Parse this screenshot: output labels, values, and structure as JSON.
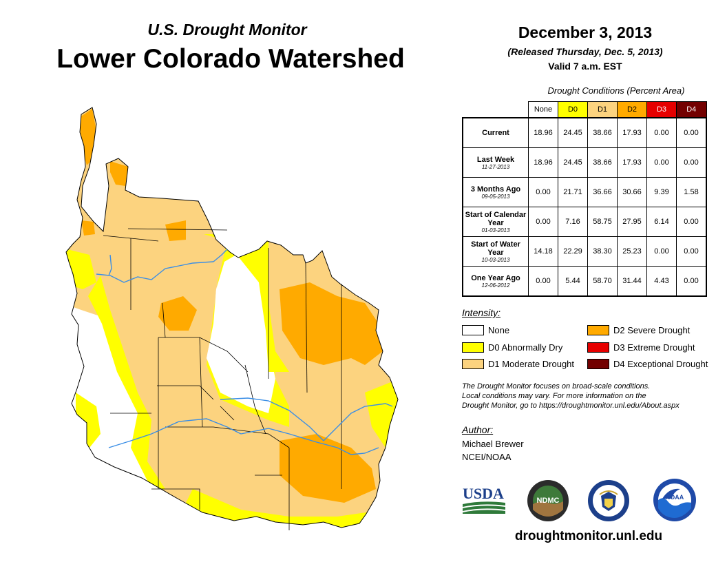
{
  "header": {
    "subtitle": "U.S. Drought Monitor",
    "title": "Lower Colorado Watershed"
  },
  "release": {
    "date": "December 3, 2013",
    "released": "(Released Thursday, Dec. 5, 2013)",
    "valid": "Valid 7 a.m. EST"
  },
  "table": {
    "caption": "Drought Conditions (Percent Area)",
    "columns": [
      "None",
      "D0",
      "D1",
      "D2",
      "D3",
      "D4"
    ],
    "column_colors": [
      "#ffffff",
      "#ffff00",
      "#fcd37f",
      "#ffaa00",
      "#e60000",
      "#730000"
    ],
    "rows": [
      {
        "label": "Current",
        "date": "",
        "values": [
          "18.96",
          "24.45",
          "38.66",
          "17.93",
          "0.00",
          "0.00"
        ]
      },
      {
        "label": "Last Week",
        "date": "11-27-2013",
        "values": [
          "18.96",
          "24.45",
          "38.66",
          "17.93",
          "0.00",
          "0.00"
        ]
      },
      {
        "label": "3 Months Ago",
        "date": "09-05-2013",
        "values": [
          "0.00",
          "21.71",
          "36.66",
          "30.66",
          "9.39",
          "1.58"
        ]
      },
      {
        "label": "Start of Calendar Year",
        "date": "01-03-2013",
        "values": [
          "0.00",
          "7.16",
          "58.75",
          "27.95",
          "6.14",
          "0.00"
        ]
      },
      {
        "label": "Start of Water Year",
        "date": "10-03-2013",
        "values": [
          "14.18",
          "22.29",
          "38.30",
          "25.23",
          "0.00",
          "0.00"
        ]
      },
      {
        "label": "One Year Ago",
        "date": "12-06-2012",
        "values": [
          "0.00",
          "5.44",
          "58.70",
          "31.44",
          "4.43",
          "0.00"
        ]
      }
    ]
  },
  "legend": {
    "title": "Intensity:",
    "items": [
      {
        "label": "None",
        "color": "#ffffff"
      },
      {
        "label": "D0 Abnormally Dry",
        "color": "#ffff00"
      },
      {
        "label": "D1 Moderate Drought",
        "color": "#fcd37f"
      },
      {
        "label": "D2 Severe Drought",
        "color": "#ffaa00"
      },
      {
        "label": "D3 Extreme Drought",
        "color": "#e60000"
      },
      {
        "label": "D4 Exceptional Drought",
        "color": "#730000"
      }
    ]
  },
  "note": {
    "line1": "The Drought Monitor focuses on broad-scale conditions.",
    "line2": "Local conditions may vary. For more information on the",
    "line3": "Drought Monitor, go to https://droughtmonitor.unl.edu/About.aspx"
  },
  "author": {
    "title": "Author:",
    "name": "Michael Brewer",
    "org": "NCEI/NOAA"
  },
  "logos": {
    "usda": "USDA",
    "ndmc": "NDMC",
    "noaa": "NOAA"
  },
  "footer": {
    "url": "droughtmonitor.unl.edu"
  },
  "map": {
    "colors": {
      "none": "#ffffff",
      "d0": "#ffff00",
      "d1": "#fcd37f",
      "d2": "#ffaa00",
      "river": "#3a8ee6",
      "border": "#000000"
    }
  }
}
